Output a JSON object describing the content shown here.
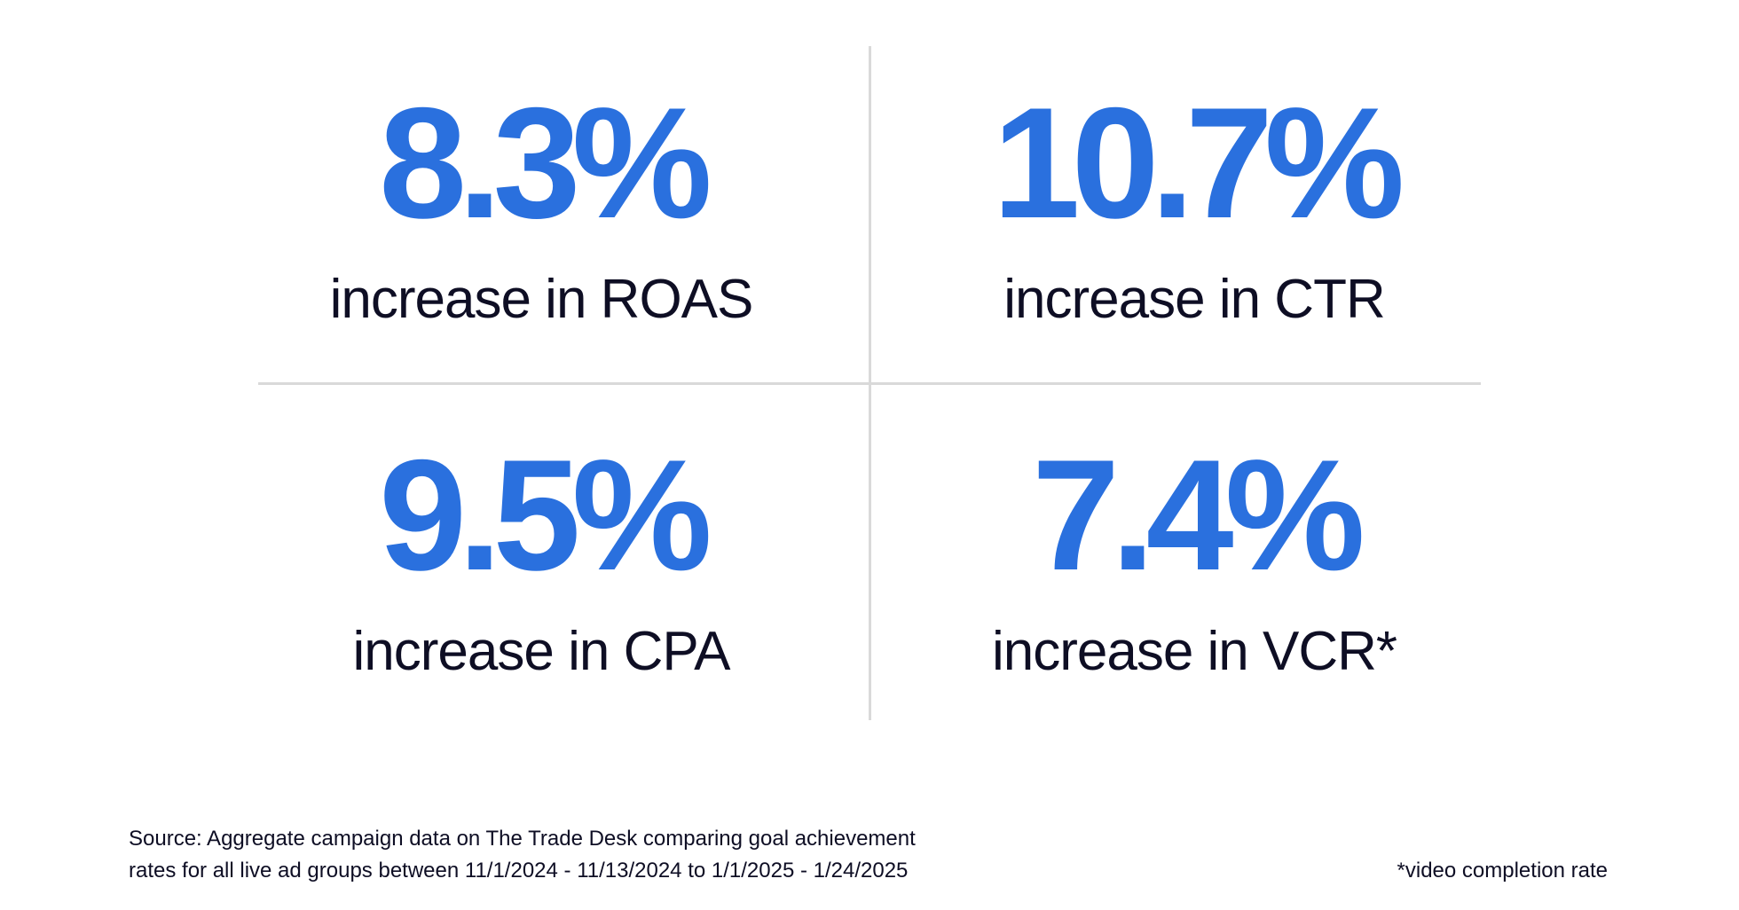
{
  "accent_color": "#2a70de",
  "stats": [
    {
      "value": "8.3%",
      "label": "increase in ROAS"
    },
    {
      "value": "10.7%",
      "label": "increase in CTR"
    },
    {
      "value": "9.5%",
      "label": "increase in CPA"
    },
    {
      "value": "7.4%",
      "label": "increase in VCR*"
    }
  ],
  "source": {
    "line1": "Source: Aggregate campaign data on The Trade Desk comparing goal achievement",
    "line2": "rates for all live ad groups between 11/1/2024 - 11/13/2024 to 1/1/2025 - 1/24/2025"
  },
  "footnote": "*video completion rate"
}
